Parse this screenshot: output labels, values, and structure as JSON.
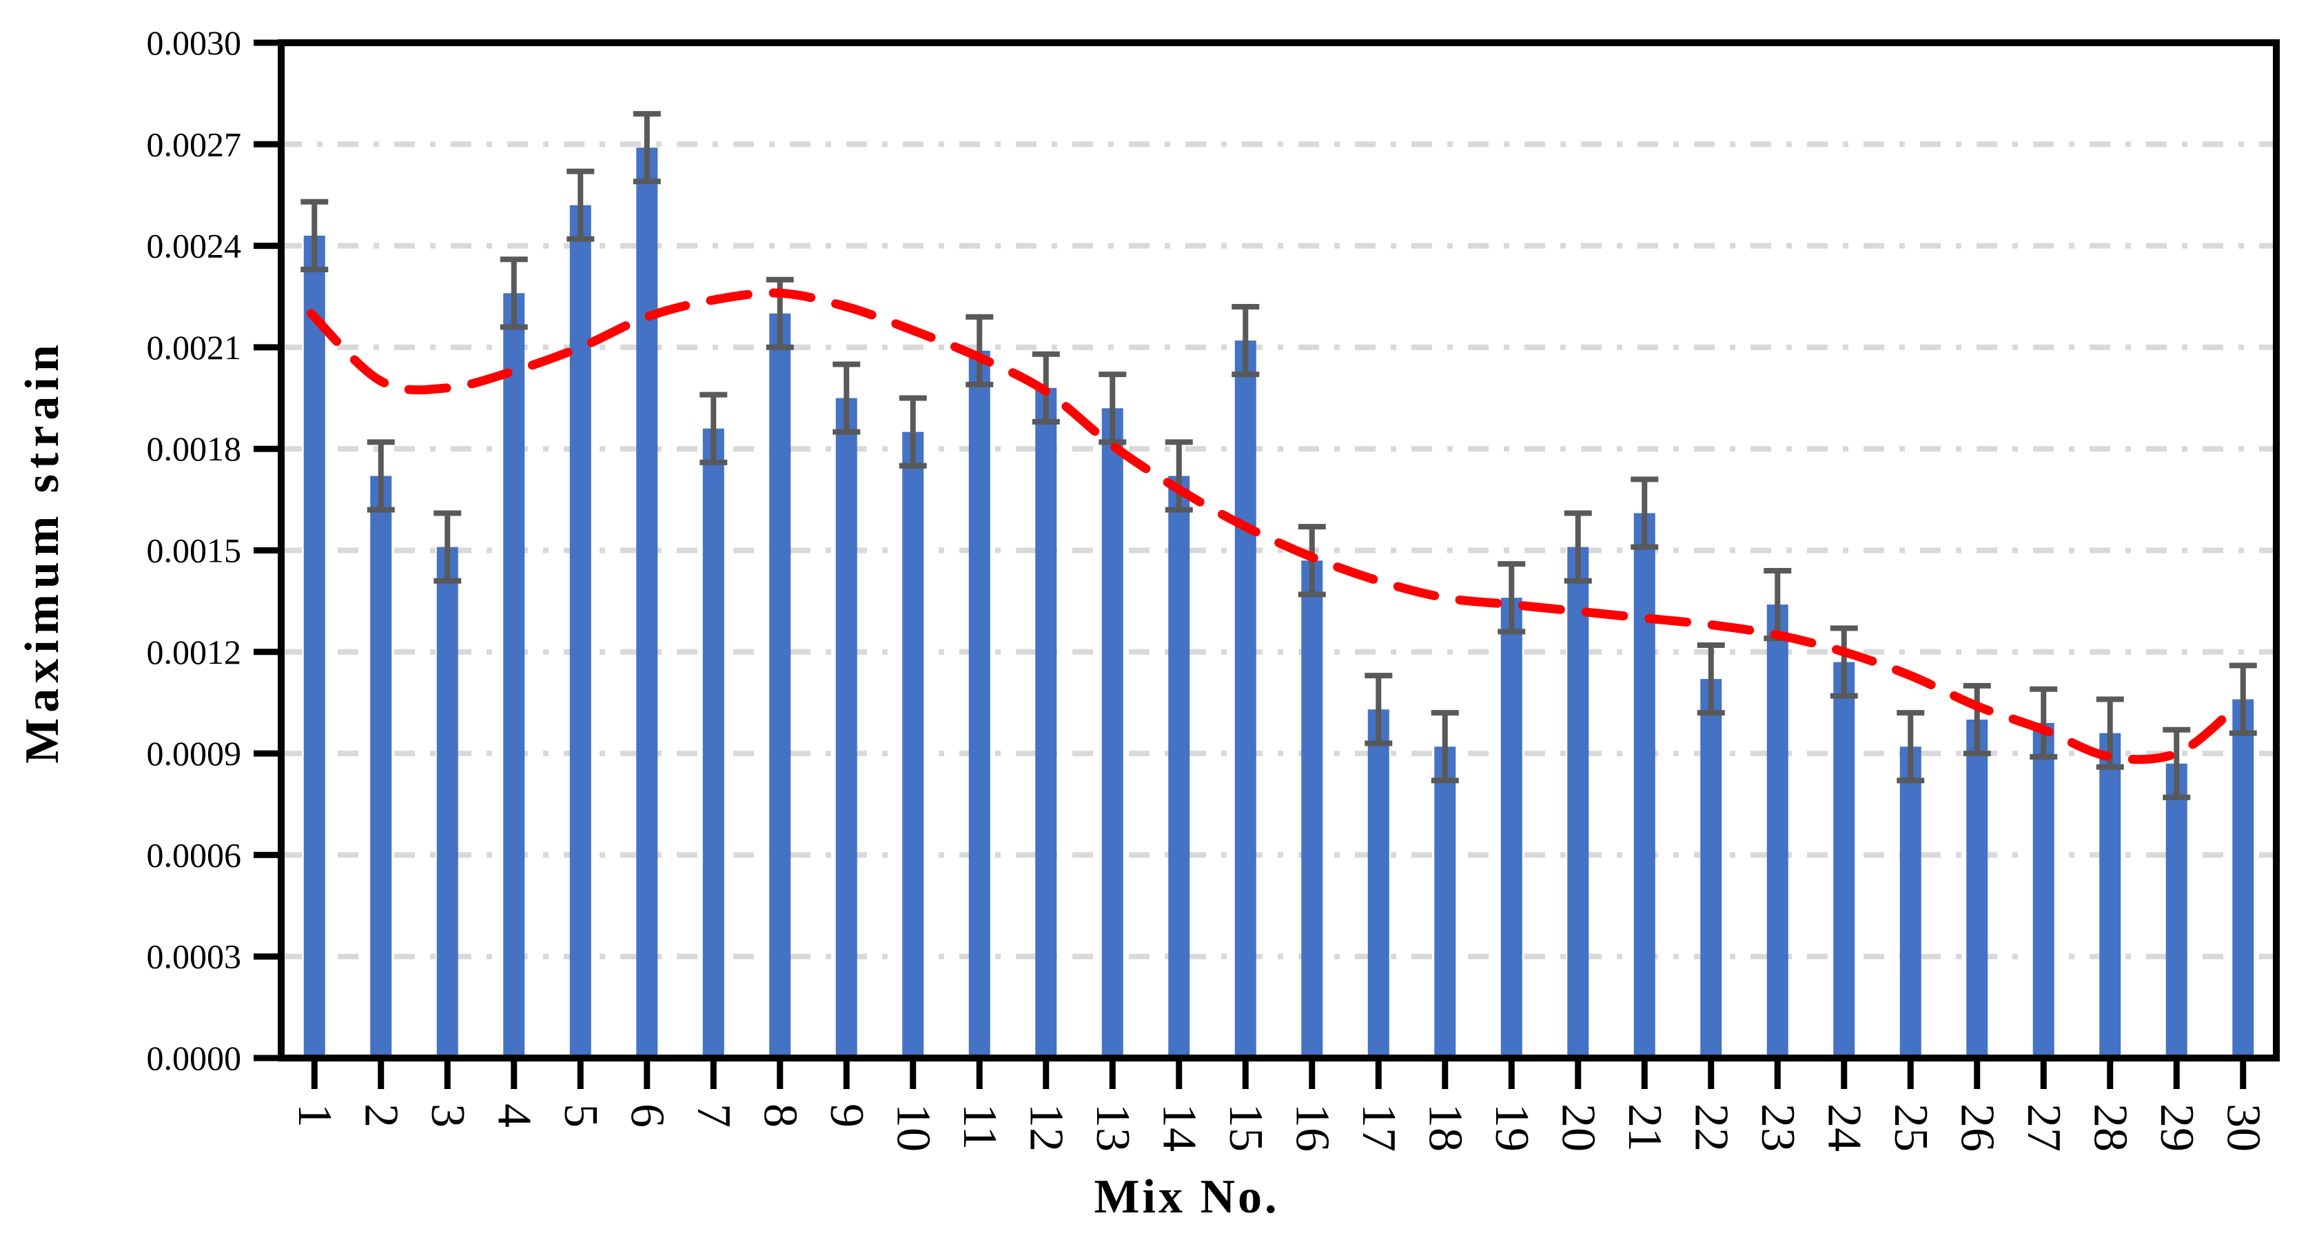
{
  "chart_data": {
    "type": "bar",
    "title": "",
    "xlabel": "Mix No.",
    "ylabel": "Maximum strain",
    "categories": [
      "1",
      "2",
      "3",
      "4",
      "5",
      "6",
      "7",
      "8",
      "9",
      "10",
      "11",
      "12",
      "13",
      "14",
      "15",
      "16",
      "17",
      "18",
      "19",
      "20",
      "21",
      "22",
      "23",
      "24",
      "25",
      "26",
      "27",
      "28",
      "29",
      "30"
    ],
    "values": [
      0.00243,
      0.00172,
      0.00151,
      0.00226,
      0.00252,
      0.00269,
      0.00186,
      0.0022,
      0.00195,
      0.00185,
      0.00209,
      0.00198,
      0.00192,
      0.00172,
      0.00212,
      0.00147,
      0.00103,
      0.00092,
      0.00136,
      0.00151,
      0.00161,
      0.00112,
      0.00134,
      0.00117,
      0.00092,
      0.001,
      0.00099,
      0.00096,
      0.00087,
      0.00106
    ],
    "error_plus": 0.0001,
    "error_minus": 0.0001,
    "ylim": [
      0,
      0.003
    ],
    "ytick_step": 0.0003,
    "ytick_labels": [
      "0.0000",
      "0.0003",
      "0.0006",
      "0.0009",
      "0.0012",
      "0.0015",
      "0.0018",
      "0.0021",
      "0.0024",
      "0.0027",
      "0.0030"
    ],
    "grid": "horizontal dash-dot gridlines at each y tick, legend off",
    "xtick_label_rotation_deg": 90,
    "trendline": {
      "style": "dashed, round caps, polynomial fit",
      "color": "#FF0000",
      "x": [
        0.95,
        2,
        3,
        4,
        5,
        6,
        7,
        8,
        9,
        10,
        11,
        12,
        13,
        14,
        15,
        16,
        17,
        18,
        19,
        20,
        21,
        22,
        23,
        24,
        25,
        26,
        27,
        28,
        29,
        29.8
      ],
      "y": [
        0.0022,
        0.002,
        0.00198,
        0.00203,
        0.0021,
        0.00219,
        0.00224,
        0.00226,
        0.00222,
        0.00215,
        0.00207,
        0.00197,
        0.00181,
        0.00168,
        0.00157,
        0.00148,
        0.00141,
        0.00136,
        0.00134,
        0.00132,
        0.0013,
        0.00128,
        0.00125,
        0.0012,
        0.00113,
        0.00104,
        0.00097,
        0.00089,
        0.0009,
        0.00102
      ]
    },
    "colors": {
      "bar": "#4472C4",
      "error_bar": "#595959",
      "gridline": "#D9D9D9",
      "axis": "#000000",
      "background": "#FFFFFF"
    }
  }
}
